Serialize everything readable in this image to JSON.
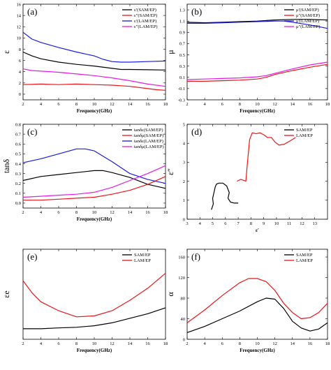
{
  "chart_data": [
    {
      "type": "line",
      "panel_label": "(a)",
      "xlabel": "Frequency(GHz)",
      "ylabel": "ε",
      "xlim": [
        2,
        18
      ],
      "ylim": [
        -1,
        16
      ],
      "xticks": [
        "2",
        "4",
        "6",
        "8",
        "10",
        "12",
        "14",
        "16",
        "18"
      ],
      "yticks": [
        "0",
        "2",
        "4",
        "6",
        "8",
        "10",
        "12",
        "14",
        "16"
      ],
      "legend_position": "top-right",
      "series": [
        {
          "name": "ε′(SAM/EP)",
          "color": "#000000",
          "x": [
            2,
            3,
            4,
            6,
            8,
            10,
            12,
            13,
            14,
            16,
            18
          ],
          "y": [
            7.5,
            6.8,
            6.3,
            5.7,
            5.3,
            5.0,
            4.6,
            4.4,
            4.4,
            4.35,
            4.3
          ]
        },
        {
          "name": "ε″(SAM/EP)",
          "color": "#e8161b",
          "x": [
            2,
            4,
            6,
            8,
            10,
            12,
            14,
            16,
            17,
            18
          ],
          "y": [
            1.7,
            1.8,
            1.7,
            1.8,
            1.7,
            1.6,
            1.4,
            1.0,
            0.8,
            0.7
          ]
        },
        {
          "name": "ε′(LAM/EP)",
          "color": "#1a1ae6",
          "x": [
            2,
            3,
            4,
            6,
            8,
            10,
            11,
            12,
            13,
            14,
            16,
            18
          ],
          "y": [
            11.0,
            9.8,
            9.2,
            8.3,
            7.5,
            6.8,
            6.2,
            5.8,
            5.7,
            5.7,
            5.8,
            5.9
          ]
        },
        {
          "name": "ε″(LAM/EP)",
          "color": "#e61ae6",
          "x": [
            2,
            3,
            4,
            6,
            8,
            10,
            12,
            14,
            16,
            18
          ],
          "y": [
            4.5,
            4.2,
            4.1,
            3.9,
            3.6,
            3.3,
            2.9,
            2.4,
            1.8,
            1.4
          ]
        }
      ]
    },
    {
      "type": "line",
      "panel_label": "(b)",
      "xlabel": "Frequency(GHz)",
      "ylabel": "μ",
      "xlim": [
        2,
        18
      ],
      "ylim": [
        -0.3,
        1.4
      ],
      "xticks": [
        "2",
        "4",
        "6",
        "8",
        "10",
        "12",
        "14",
        "16",
        "18"
      ],
      "yticks": [
        "-0.3",
        "-0.1",
        "0.1",
        "0.3",
        "0.5",
        "0.7",
        "0.9",
        "1.1",
        "1.3"
      ],
      "legend_position": "top-right",
      "series": [
        {
          "name": "μ′(SAM/EP)",
          "color": "#000000",
          "x": [
            2,
            4,
            6,
            8,
            10,
            12,
            14,
            16,
            18
          ],
          "y": [
            1.08,
            1.07,
            1.08,
            1.09,
            1.1,
            1.12,
            1.13,
            1.13,
            1.12
          ]
        },
        {
          "name": "μ″(SAM/EP)",
          "color": "#e8161b",
          "x": [
            2,
            4,
            6,
            8,
            10,
            11,
            12,
            14,
            16,
            18
          ],
          "y": [
            0.03,
            0.03,
            0.04,
            0.05,
            0.07,
            0.1,
            0.15,
            0.22,
            0.28,
            0.33
          ]
        },
        {
          "name": "μ′(LAM/EP)",
          "color": "#1a1ae6",
          "x": [
            2,
            4,
            6,
            8,
            10,
            12,
            13,
            14,
            16,
            18
          ],
          "y": [
            1.06,
            1.06,
            1.07,
            1.08,
            1.09,
            1.1,
            1.1,
            1.08,
            1.03,
            0.97
          ]
        },
        {
          "name": "μ″(LAM/EP)",
          "color": "#e61ae6",
          "x": [
            2,
            4,
            6,
            8,
            10,
            11,
            12,
            14,
            16,
            18
          ],
          "y": [
            0.06,
            0.07,
            0.08,
            0.09,
            0.11,
            0.13,
            0.17,
            0.25,
            0.32,
            0.37
          ]
        }
      ]
    },
    {
      "type": "line",
      "panel_label": "(c)",
      "xlabel": "Frequency(GHz)",
      "ylabel": "tanδ",
      "xlim": [
        2,
        18
      ],
      "ylim": [
        -0.05,
        0.8
      ],
      "xticks": [
        "2",
        "4",
        "6",
        "8",
        "10",
        "12",
        "14",
        "16",
        "18"
      ],
      "yticks": [
        "0.0",
        "0.1",
        "0.2",
        "0.3",
        "0.4",
        "0.5",
        "0.6",
        "0.7",
        "0.8"
      ],
      "legend_position": "top-right",
      "series": [
        {
          "name": "tanδε(SAM/EP)",
          "color": "#000000",
          "x": [
            2,
            4,
            6,
            8,
            10,
            11,
            12,
            14,
            16,
            18
          ],
          "y": [
            0.23,
            0.27,
            0.29,
            0.31,
            0.33,
            0.33,
            0.31,
            0.26,
            0.19,
            0.15
          ]
        },
        {
          "name": "tanδμ(SAM/EP)",
          "color": "#e8161b",
          "x": [
            2,
            4,
            6,
            8,
            10,
            12,
            14,
            16,
            18
          ],
          "y": [
            0.03,
            0.03,
            0.04,
            0.05,
            0.06,
            0.09,
            0.13,
            0.19,
            0.27
          ]
        },
        {
          "name": "tanδε(LAM/EP)",
          "color": "#1a1ae6",
          "x": [
            2,
            4,
            6,
            8,
            9,
            10,
            12,
            14,
            16,
            18
          ],
          "y": [
            0.41,
            0.45,
            0.5,
            0.55,
            0.55,
            0.53,
            0.42,
            0.3,
            0.24,
            0.2
          ]
        },
        {
          "name": "tanδμ(LAM/EP)",
          "color": "#e61ae6",
          "x": [
            2,
            4,
            6,
            8,
            10,
            12,
            14,
            16,
            18
          ],
          "y": [
            0.06,
            0.07,
            0.08,
            0.09,
            0.11,
            0.16,
            0.23,
            0.3,
            0.38
          ]
        }
      ]
    },
    {
      "type": "line",
      "panel_label": "(d)",
      "xlabel": "ε′",
      "ylabel": "ε″",
      "xlim": [
        3,
        14
      ],
      "ylim": [
        0,
        5
      ],
      "xticks": [
        "3",
        "4",
        "5",
        "6",
        "7",
        "8",
        "9",
        "10",
        "11",
        "12",
        "13"
      ],
      "yticks": [
        "0",
        "1",
        "2",
        "3",
        "4",
        "5"
      ],
      "legend_position": "top-right",
      "series": [
        {
          "name": "SAM/EP",
          "color": "#000000",
          "x": [
            4.9,
            5.05,
            5.0,
            5.1,
            5.2,
            5.3,
            5.5,
            5.8,
            6.1,
            6.3,
            6.2,
            6.4,
            6.7,
            7.0
          ],
          "y": [
            0.5,
            0.8,
            1.1,
            1.4,
            1.7,
            1.85,
            1.9,
            1.9,
            1.75,
            1.4,
            1.1,
            0.9,
            0.85,
            0.85
          ]
        },
        {
          "name": "LAM/EP",
          "color": "#e8161b",
          "x": [
            6.9,
            7.2,
            7.6,
            7.7,
            7.8,
            7.9,
            8.1,
            8.4,
            8.7,
            9.0,
            9.3,
            9.6,
            9.9,
            10.2,
            10.6,
            11.0,
            11.5
          ],
          "y": [
            2.0,
            2.1,
            2.0,
            2.8,
            3.5,
            4.2,
            4.55,
            4.5,
            4.55,
            4.45,
            4.3,
            4.3,
            4.05,
            3.9,
            3.95,
            4.1,
            4.3
          ]
        }
      ]
    },
    {
      "type": "line",
      "panel_label": "(e)",
      "xlabel": "Frequency(GHz)",
      "ylabel": "εe",
      "xlim": [
        2,
        18
      ],
      "ylim": [
        0,
        0.03
      ],
      "xticks": [
        "2",
        "4",
        "6",
        "8",
        "10",
        "12",
        "14",
        "16",
        "18"
      ],
      "yticks": [],
      "legend_position": "top-right",
      "series": [
        {
          "name": "SAM/EP",
          "color": "#000000",
          "x": [
            2,
            4,
            6,
            8,
            10,
            12,
            14,
            16,
            18
          ],
          "y": [
            0.0035,
            0.0035,
            0.0038,
            0.004,
            0.0045,
            0.0055,
            0.007,
            0.0085,
            0.0105
          ]
        },
        {
          "name": "LAM/EP",
          "color": "#e8161b",
          "x": [
            2,
            3,
            4,
            6,
            8,
            10,
            12,
            14,
            16,
            18
          ],
          "y": [
            0.0195,
            0.0155,
            0.0125,
            0.0095,
            0.0075,
            0.0078,
            0.0095,
            0.013,
            0.017,
            0.022
          ]
        }
      ]
    },
    {
      "type": "line",
      "panel_label": "(f)",
      "xlabel": "Frequency(GHz)",
      "ylabel": "α",
      "xlim": [
        2,
        18
      ],
      "ylim": [
        0,
        175
      ],
      "xticks": [
        "2",
        "4",
        "6",
        "8",
        "10",
        "12",
        "14",
        "16",
        "18"
      ],
      "yticks": [
        "0",
        "40",
        "80",
        "120",
        "160"
      ],
      "legend_position": "top-right",
      "series": [
        {
          "name": "SAM/EP",
          "color": "#000000",
          "x": [
            2,
            4,
            6,
            8,
            10,
            11,
            12,
            13,
            14,
            15,
            16,
            17,
            18
          ],
          "y": [
            13,
            25,
            40,
            55,
            73,
            80,
            78,
            60,
            35,
            22,
            16,
            20,
            32
          ]
        },
        {
          "name": "LAM/EP",
          "color": "#e8161b",
          "x": [
            2,
            4,
            6,
            8,
            9,
            10,
            11,
            12,
            13,
            14,
            15,
            16,
            17,
            18
          ],
          "y": [
            32,
            57,
            85,
            110,
            118,
            118,
            112,
            95,
            70,
            52,
            40,
            42,
            52,
            70
          ]
        }
      ]
    }
  ]
}
